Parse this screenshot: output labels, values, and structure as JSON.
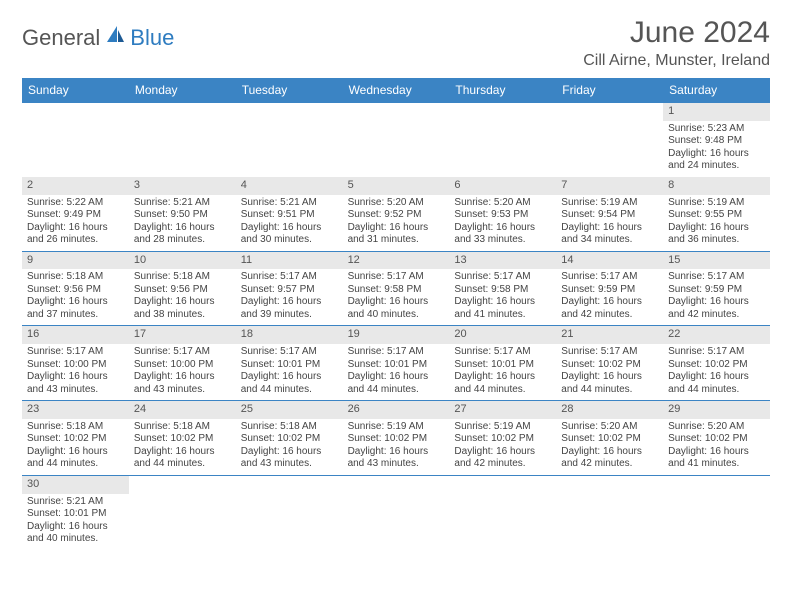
{
  "logo": {
    "part1": "General",
    "part2": "Blue"
  },
  "title": "June 2024",
  "location": "Cill Airne, Munster, Ireland",
  "colors": {
    "header_bg": "#3b84c4",
    "header_fg": "#ffffff",
    "daynum_bg": "#e8e8e8",
    "border": "#3b84c4",
    "text": "#444444",
    "logo_blue": "#2e7cc0"
  },
  "day_names": [
    "Sunday",
    "Monday",
    "Tuesday",
    "Wednesday",
    "Thursday",
    "Friday",
    "Saturday"
  ],
  "weeks": [
    [
      {
        "n": "",
        "sr": "",
        "ss": "",
        "dl": ""
      },
      {
        "n": "",
        "sr": "",
        "ss": "",
        "dl": ""
      },
      {
        "n": "",
        "sr": "",
        "ss": "",
        "dl": ""
      },
      {
        "n": "",
        "sr": "",
        "ss": "",
        "dl": ""
      },
      {
        "n": "",
        "sr": "",
        "ss": "",
        "dl": ""
      },
      {
        "n": "",
        "sr": "",
        "ss": "",
        "dl": ""
      },
      {
        "n": "1",
        "sr": "Sunrise: 5:23 AM",
        "ss": "Sunset: 9:48 PM",
        "dl": "Daylight: 16 hours and 24 minutes."
      }
    ],
    [
      {
        "n": "2",
        "sr": "Sunrise: 5:22 AM",
        "ss": "Sunset: 9:49 PM",
        "dl": "Daylight: 16 hours and 26 minutes."
      },
      {
        "n": "3",
        "sr": "Sunrise: 5:21 AM",
        "ss": "Sunset: 9:50 PM",
        "dl": "Daylight: 16 hours and 28 minutes."
      },
      {
        "n": "4",
        "sr": "Sunrise: 5:21 AM",
        "ss": "Sunset: 9:51 PM",
        "dl": "Daylight: 16 hours and 30 minutes."
      },
      {
        "n": "5",
        "sr": "Sunrise: 5:20 AM",
        "ss": "Sunset: 9:52 PM",
        "dl": "Daylight: 16 hours and 31 minutes."
      },
      {
        "n": "6",
        "sr": "Sunrise: 5:20 AM",
        "ss": "Sunset: 9:53 PM",
        "dl": "Daylight: 16 hours and 33 minutes."
      },
      {
        "n": "7",
        "sr": "Sunrise: 5:19 AM",
        "ss": "Sunset: 9:54 PM",
        "dl": "Daylight: 16 hours and 34 minutes."
      },
      {
        "n": "8",
        "sr": "Sunrise: 5:19 AM",
        "ss": "Sunset: 9:55 PM",
        "dl": "Daylight: 16 hours and 36 minutes."
      }
    ],
    [
      {
        "n": "9",
        "sr": "Sunrise: 5:18 AM",
        "ss": "Sunset: 9:56 PM",
        "dl": "Daylight: 16 hours and 37 minutes."
      },
      {
        "n": "10",
        "sr": "Sunrise: 5:18 AM",
        "ss": "Sunset: 9:56 PM",
        "dl": "Daylight: 16 hours and 38 minutes."
      },
      {
        "n": "11",
        "sr": "Sunrise: 5:17 AM",
        "ss": "Sunset: 9:57 PM",
        "dl": "Daylight: 16 hours and 39 minutes."
      },
      {
        "n": "12",
        "sr": "Sunrise: 5:17 AM",
        "ss": "Sunset: 9:58 PM",
        "dl": "Daylight: 16 hours and 40 minutes."
      },
      {
        "n": "13",
        "sr": "Sunrise: 5:17 AM",
        "ss": "Sunset: 9:58 PM",
        "dl": "Daylight: 16 hours and 41 minutes."
      },
      {
        "n": "14",
        "sr": "Sunrise: 5:17 AM",
        "ss": "Sunset: 9:59 PM",
        "dl": "Daylight: 16 hours and 42 minutes."
      },
      {
        "n": "15",
        "sr": "Sunrise: 5:17 AM",
        "ss": "Sunset: 9:59 PM",
        "dl": "Daylight: 16 hours and 42 minutes."
      }
    ],
    [
      {
        "n": "16",
        "sr": "Sunrise: 5:17 AM",
        "ss": "Sunset: 10:00 PM",
        "dl": "Daylight: 16 hours and 43 minutes."
      },
      {
        "n": "17",
        "sr": "Sunrise: 5:17 AM",
        "ss": "Sunset: 10:00 PM",
        "dl": "Daylight: 16 hours and 43 minutes."
      },
      {
        "n": "18",
        "sr": "Sunrise: 5:17 AM",
        "ss": "Sunset: 10:01 PM",
        "dl": "Daylight: 16 hours and 44 minutes."
      },
      {
        "n": "19",
        "sr": "Sunrise: 5:17 AM",
        "ss": "Sunset: 10:01 PM",
        "dl": "Daylight: 16 hours and 44 minutes."
      },
      {
        "n": "20",
        "sr": "Sunrise: 5:17 AM",
        "ss": "Sunset: 10:01 PM",
        "dl": "Daylight: 16 hours and 44 minutes."
      },
      {
        "n": "21",
        "sr": "Sunrise: 5:17 AM",
        "ss": "Sunset: 10:02 PM",
        "dl": "Daylight: 16 hours and 44 minutes."
      },
      {
        "n": "22",
        "sr": "Sunrise: 5:17 AM",
        "ss": "Sunset: 10:02 PM",
        "dl": "Daylight: 16 hours and 44 minutes."
      }
    ],
    [
      {
        "n": "23",
        "sr": "Sunrise: 5:18 AM",
        "ss": "Sunset: 10:02 PM",
        "dl": "Daylight: 16 hours and 44 minutes."
      },
      {
        "n": "24",
        "sr": "Sunrise: 5:18 AM",
        "ss": "Sunset: 10:02 PM",
        "dl": "Daylight: 16 hours and 44 minutes."
      },
      {
        "n": "25",
        "sr": "Sunrise: 5:18 AM",
        "ss": "Sunset: 10:02 PM",
        "dl": "Daylight: 16 hours and 43 minutes."
      },
      {
        "n": "26",
        "sr": "Sunrise: 5:19 AM",
        "ss": "Sunset: 10:02 PM",
        "dl": "Daylight: 16 hours and 43 minutes."
      },
      {
        "n": "27",
        "sr": "Sunrise: 5:19 AM",
        "ss": "Sunset: 10:02 PM",
        "dl": "Daylight: 16 hours and 42 minutes."
      },
      {
        "n": "28",
        "sr": "Sunrise: 5:20 AM",
        "ss": "Sunset: 10:02 PM",
        "dl": "Daylight: 16 hours and 42 minutes."
      },
      {
        "n": "29",
        "sr": "Sunrise: 5:20 AM",
        "ss": "Sunset: 10:02 PM",
        "dl": "Daylight: 16 hours and 41 minutes."
      }
    ],
    [
      {
        "n": "30",
        "sr": "Sunrise: 5:21 AM",
        "ss": "Sunset: 10:01 PM",
        "dl": "Daylight: 16 hours and 40 minutes."
      },
      {
        "n": "",
        "sr": "",
        "ss": "",
        "dl": ""
      },
      {
        "n": "",
        "sr": "",
        "ss": "",
        "dl": ""
      },
      {
        "n": "",
        "sr": "",
        "ss": "",
        "dl": ""
      },
      {
        "n": "",
        "sr": "",
        "ss": "",
        "dl": ""
      },
      {
        "n": "",
        "sr": "",
        "ss": "",
        "dl": ""
      },
      {
        "n": "",
        "sr": "",
        "ss": "",
        "dl": ""
      }
    ]
  ]
}
